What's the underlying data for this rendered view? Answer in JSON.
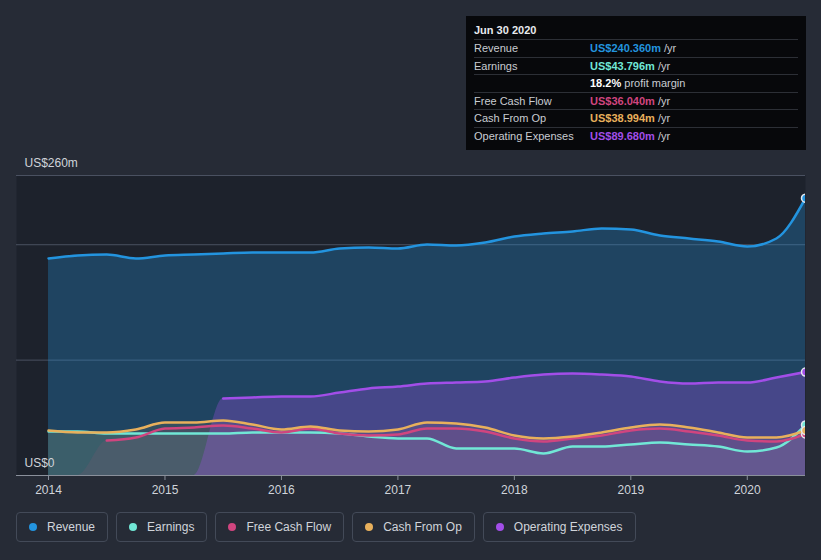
{
  "chart_data": {
    "type": "area",
    "x": [
      2014,
      2014.25,
      2014.5,
      2014.75,
      2015,
      2015.25,
      2015.5,
      2015.75,
      2016,
      2016.25,
      2016.5,
      2016.75,
      2017,
      2017.25,
      2017.5,
      2017.75,
      2018,
      2018.25,
      2018.5,
      2018.75,
      2019,
      2019.25,
      2019.5,
      2019.75,
      2020,
      2020.25,
      2020.5
    ],
    "series": [
      {
        "name": "Revenue",
        "color": "#2394df",
        "values": [
          188.1,
          190.7,
          191.5,
          188.1,
          190.7,
          191.5,
          192.4,
          193.3,
          193.3,
          193.3,
          196.7,
          197.6,
          196.7,
          200.2,
          199.3,
          201.9,
          207.1,
          209.7,
          211.5,
          214.1,
          213.2,
          208,
          205.4,
          202.8,
          198.5,
          205.4,
          240.36
        ]
      },
      {
        "name": "Earnings",
        "color": "#71e7d6",
        "values": [
          38.1,
          38.1,
          36.4,
          36.4,
          36.4,
          36.4,
          36.4,
          37.3,
          37.3,
          37.3,
          36.4,
          33.8,
          32.1,
          32.1,
          23.4,
          23.4,
          23.4,
          19.1,
          25.1,
          25.1,
          26.9,
          28.6,
          26.9,
          25.1,
          20.8,
          24.3,
          43.796
        ]
      },
      {
        "name": "Free Cash Flow",
        "color": "#d0457f",
        "values": [
          null,
          null,
          30.3,
          32.9,
          40.7,
          41.6,
          43.3,
          40.7,
          37.3,
          40.7,
          36.4,
          34.7,
          35.5,
          40.7,
          40.7,
          38.1,
          32.1,
          29.5,
          32.1,
          34.7,
          39,
          40.7,
          38.1,
          34.7,
          30.3,
          29.5,
          36.04
        ]
      },
      {
        "name": "Cash From Op",
        "color": "#e8b05c",
        "values": [
          39,
          37.3,
          37.3,
          39.9,
          45.9,
          45.9,
          47.7,
          44.2,
          39.9,
          42.5,
          39,
          38.1,
          39.9,
          45.9,
          45.1,
          41.6,
          34.7,
          32.1,
          33.8,
          37.3,
          41.6,
          44.2,
          41.6,
          37.3,
          32.9,
          32.9,
          38.994
        ]
      },
      {
        "name": "Operating Expenses",
        "color": "#a24ee8",
        "values": [
          null,
          null,
          null,
          null,
          null,
          null,
          66.7,
          67.6,
          68.5,
          68.5,
          71.9,
          75.4,
          77.1,
          79.7,
          80.6,
          81.5,
          84.9,
          87.5,
          88.4,
          87.5,
          85.8,
          81.5,
          79.7,
          80.6,
          80.6,
          84.9,
          89.68
        ]
      }
    ],
    "xlim": [
      2013.725,
      2020.5
    ],
    "xticks": [
      2014,
      2015,
      2016,
      2017,
      2018,
      2019,
      2020
    ],
    "ylim": [
      0,
      260
    ],
    "yticks": [
      {
        "value": 0,
        "label": "US$0"
      },
      {
        "value": 100,
        "label": null
      },
      {
        "value": 200,
        "label": null
      },
      {
        "value": 260,
        "label": "US$260m"
      }
    ],
    "grid": true,
    "legend": "bottom",
    "annotations": {
      "title": "Jun 30 2020",
      "rows": [
        {
          "label": "Revenue",
          "text": "US$240.360m",
          "unit": "/yr"
        },
        {
          "label": "Earnings",
          "text": "US$43.796m",
          "unit": "/yr"
        },
        {
          "text": "18.2%",
          "label": "profit margin"
        },
        {
          "label": "Free Cash Flow",
          "text": "US$36.040m",
          "unit": "/yr"
        },
        {
          "label": "Cash From Op",
          "text": "US$38.994m",
          "unit": "/yr"
        },
        {
          "label": "Operating Expenses",
          "text": "US$89.680m",
          "unit": "/yr"
        }
      ]
    }
  }
}
